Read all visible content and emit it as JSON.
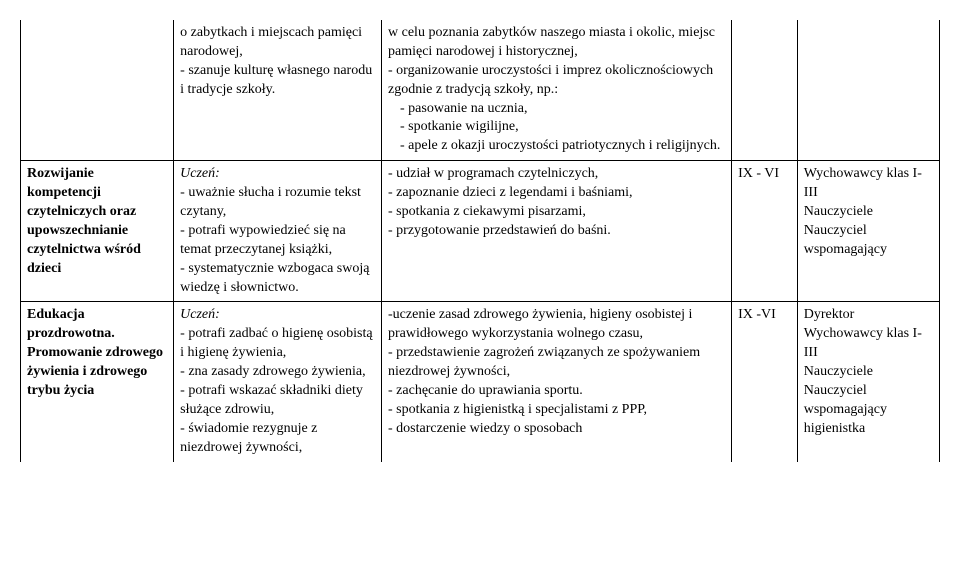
{
  "rows": [
    {
      "c1": "",
      "c2": "o zabytkach i miejscach pamięci narodowej,\n- szanuje kulturę własnego narodu i tradycje szkoły.",
      "c3": "w celu poznania zabytków naszego miasta i okolic, miejsc pamięci narodowej i historycznej,\n- organizowanie uroczystości i imprez okolicznościowych zgodnie z tradycją szkoły, np.:\n  - pasowanie na ucznia,\n  - spotkanie wigilijne,\n  - apele z okazji uroczystości patriotycznych i religijnych.",
      "c4": "",
      "c5": "",
      "topOpen": true
    },
    {
      "c1_html": "<span class=\"bold\">Rozwijanie kompetencji czytelniczych oraz upowszechnianie czytelnictwa wśród dzieci</span>",
      "c2_html": "<span class=\"italic\">Uczeń:</span><br>- uważnie słucha i rozumie tekst czytany,<br>- potrafi wypowiedzieć się na temat przeczytanej książki,<br>- systematycznie wzbogaca swoją wiedzę i słownictwo.",
      "c3": "- udział w programach czytelniczych,\n- zapoznanie dzieci z legendami i baśniami,\n- spotkania z ciekawymi pisarzami,\n- przygotowanie przedstawień do baśni.",
      "c4": "IX - VI",
      "c5": "Wychowawcy klas I-III\nNauczyciele\nNauczyciel wspomagający"
    },
    {
      "c1_html": "<span class=\"bold\">Edukacja prozdrowotna.<br>Promowanie zdrowego żywienia i zdrowego trybu życia</span>",
      "c2_html": "<span class=\"italic\">Uczeń:</span><br>- potrafi zadbać o higienę osobistą i higienę żywienia,<br>- zna zasady zdrowego żywienia,<br>- potrafi wskazać składniki diety służące zdrowiu,<br>- świadomie rezygnuje  z niezdrowej żywności,",
      "c3": "-uczenie zasad zdrowego żywienia, higieny osobistej i prawidłowego wykorzystania wolnego czasu,\n- przedstawienie zagrożeń związanych ze spożywaniem niezdrowej żywności,\n- zachęcanie do uprawiania sportu.\n- spotkania z higienistką i specjalistami z PPP,\n- dostarczenie wiedzy  o sposobach",
      "c4": "IX -VI",
      "c5": "Dyrektor\nWychowawcy klas I-III\nNauczyciele\nNauczyciel wspomagający\nhigienistka",
      "bottomOpen": true
    }
  ]
}
